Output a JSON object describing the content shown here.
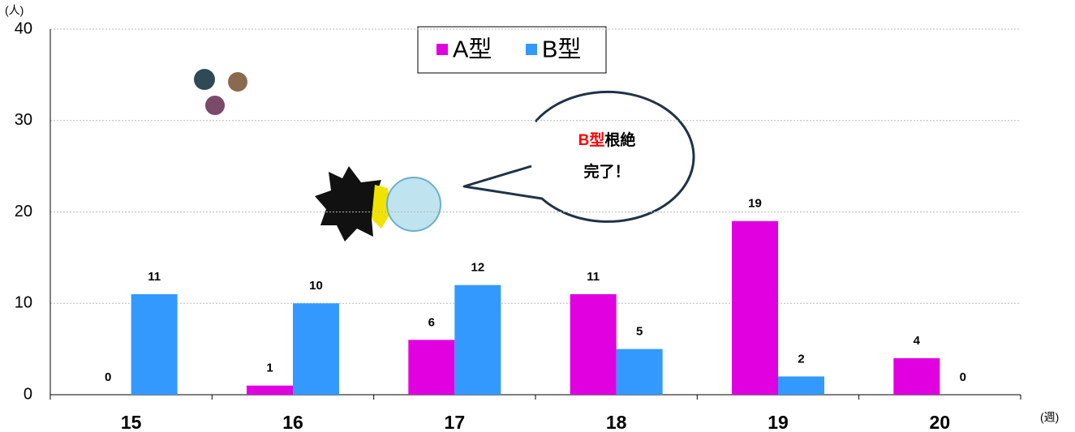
{
  "chart_data": {
    "type": "bar",
    "categories": [
      "15",
      "16",
      "17",
      "18",
      "19",
      "20"
    ],
    "series": [
      {
        "name": "A型",
        "color": "#e000e0",
        "values": [
          0,
          1,
          6,
          11,
          19,
          4
        ],
        "value_label_colors": [
          "#000000",
          "#000000",
          "#000000",
          "#000000",
          "#000000",
          "#ff0000"
        ]
      },
      {
        "name": "B型",
        "color": "#3399ff",
        "values": [
          11,
          10,
          12,
          5,
          2,
          0
        ],
        "value_label_colors": [
          "#000000",
          "#000000",
          "#000000",
          "#000000",
          "#000000",
          "#ff0000"
        ]
      }
    ],
    "ylim": [
      0,
      40
    ],
    "yticks": [
      0,
      10,
      20,
      30,
      40
    ],
    "grid": true,
    "y_unit": "(人)",
    "x_unit": "(週)",
    "annotation": {
      "highlight": "B型",
      "text": "根絶",
      "line2": "完了！",
      "highlight_color": "#ff0000"
    }
  }
}
